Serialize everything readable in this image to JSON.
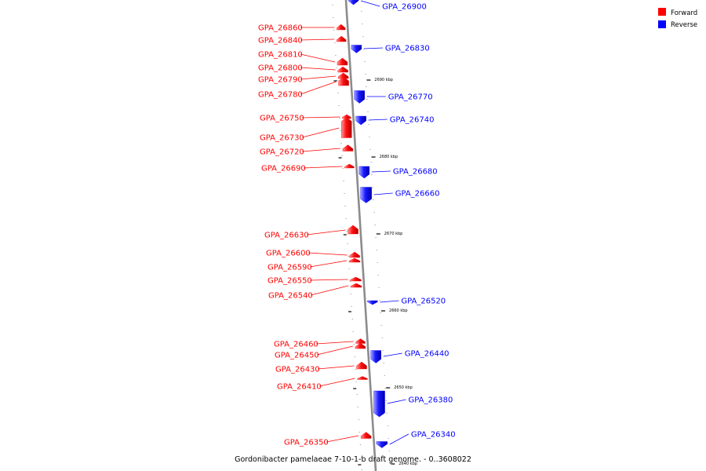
{
  "legend": {
    "forward_label": "Forward",
    "reverse_label": "Reverse",
    "forward_color": "#ff0000",
    "reverse_color": "#0000ff"
  },
  "caption": "Gordonibacter pamelaeae 7-10-1-b draft genome. - 0..3608022",
  "ticks": [
    "2690 kbp",
    "2680 kbp",
    "2670 kbp",
    "2660 kbp",
    "2650 kbp",
    "2640 kbp"
  ],
  "forward_genes": [
    {
      "id": "GPA_26860"
    },
    {
      "id": "GPA_26840"
    },
    {
      "id": "GPA_26810"
    },
    {
      "id": "GPA_26800"
    },
    {
      "id": "GPA_26790"
    },
    {
      "id": "GPA_26780"
    },
    {
      "id": "GPA_26750"
    },
    {
      "id": "GPA_26730"
    },
    {
      "id": "GPA_26720"
    },
    {
      "id": "GPA_26690"
    },
    {
      "id": "GPA_26630"
    },
    {
      "id": "GPA_26600"
    },
    {
      "id": "GPA_26590"
    },
    {
      "id": "GPA_26550"
    },
    {
      "id": "GPA_26540"
    },
    {
      "id": "GPA_26460"
    },
    {
      "id": "GPA_26450"
    },
    {
      "id": "GPA_26430"
    },
    {
      "id": "GPA_26410"
    },
    {
      "id": "GPA_26350"
    }
  ],
  "reverse_genes": [
    {
      "id": "GPA_26900"
    },
    {
      "id": "GPA_26830"
    },
    {
      "id": "GPA_26770"
    },
    {
      "id": "GPA_26740"
    },
    {
      "id": "GPA_26680"
    },
    {
      "id": "GPA_26660"
    },
    {
      "id": "GPA_26520"
    },
    {
      "id": "GPA_26440"
    },
    {
      "id": "GPA_26380"
    },
    {
      "id": "GPA_26340"
    }
  ]
}
